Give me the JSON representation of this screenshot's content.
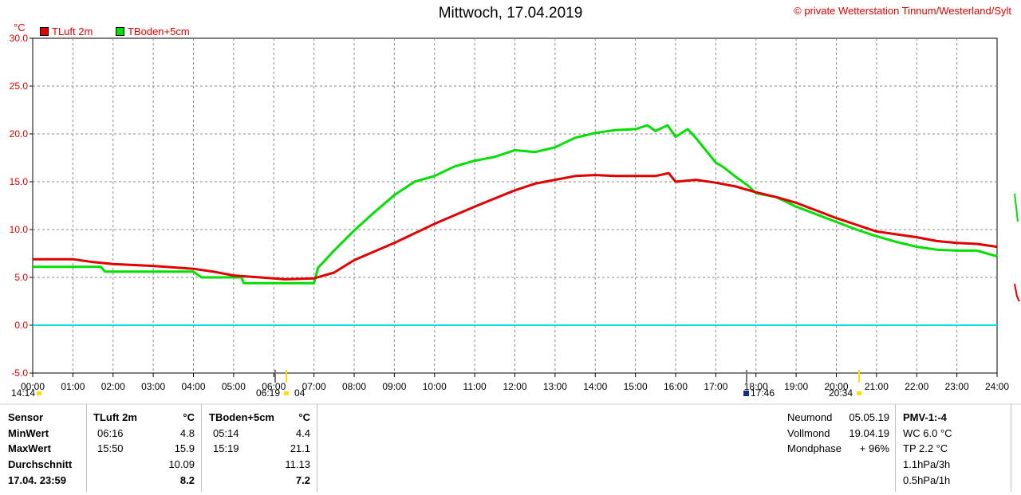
{
  "header": {
    "title": "Mittwoch, 17.04.2019",
    "copyright": "© private Wetterstation Tinnum/Westerland/Sylt",
    "unit": "°C"
  },
  "colors": {
    "tluft": "#e00000",
    "tboden": "#00e000",
    "zero": "#00e0e0",
    "grid": "#888888"
  },
  "chart_data": {
    "type": "line",
    "title": "Mittwoch, 17.04.2019",
    "ylabel": "°C",
    "ylim": [
      -5,
      30
    ],
    "xlim": [
      0,
      24
    ],
    "grid": true,
    "legend_position": "top-left",
    "y_ticks": [
      "30.0",
      "25.0",
      "20.0",
      "15.0",
      "10.0",
      "5.0",
      "0.0",
      "-5.0"
    ],
    "x_ticks": [
      "00:00",
      "01:00",
      "02:00",
      "03:00",
      "04:00",
      "05:00",
      "06:00",
      "07:00",
      "08:00",
      "09:00",
      "10:00",
      "11:00",
      "12:00",
      "13:00",
      "14:00",
      "15:00",
      "16:00",
      "17:00",
      "18:00",
      "19:00",
      "20:00",
      "21:00",
      "22:00",
      "23:00",
      "24:00"
    ],
    "series": [
      {
        "name": "TLuft 2m",
        "x": [
          0,
          1,
          1.5,
          2,
          3,
          4,
          4.5,
          5,
          6,
          6.27,
          7,
          7.5,
          8,
          9,
          10,
          11,
          12,
          12.5,
          13,
          13.5,
          14,
          14.5,
          15,
          15.5,
          15.83,
          16,
          16.5,
          17,
          17.5,
          18,
          18.5,
          19,
          19.5,
          20,
          20.5,
          21,
          21.5,
          22,
          22.5,
          23,
          23.5,
          24
        ],
        "y": [
          6.9,
          6.9,
          6.6,
          6.4,
          6.2,
          5.9,
          5.6,
          5.2,
          4.9,
          4.8,
          4.9,
          5.5,
          6.8,
          8.6,
          10.6,
          12.4,
          14.1,
          14.8,
          15.2,
          15.6,
          15.7,
          15.6,
          15.6,
          15.6,
          15.9,
          15.0,
          15.2,
          14.9,
          14.5,
          13.9,
          13.4,
          12.8,
          12.0,
          11.2,
          10.5,
          9.8,
          9.5,
          9.2,
          8.8,
          8.6,
          8.5,
          8.2
        ]
      },
      {
        "name": "TBoden+5cm",
        "x": [
          0,
          1.7,
          1.8,
          4,
          4.2,
          5.2,
          5.25,
          7.0,
          7.1,
          7.5,
          8,
          8.5,
          9,
          9.5,
          10,
          10.5,
          11,
          11.5,
          12,
          12.5,
          13,
          13.5,
          14,
          14.5,
          15,
          15.3,
          15.5,
          15.8,
          16,
          16.3,
          16.5,
          17,
          17.2,
          17.5,
          17.8,
          18,
          18.5,
          19,
          19.5,
          20,
          20.5,
          21,
          21.5,
          22,
          22.5,
          23,
          23.5,
          24
        ],
        "y": [
          6.1,
          6.1,
          5.6,
          5.6,
          5.0,
          5.0,
          4.4,
          4.4,
          6.0,
          7.8,
          9.9,
          11.8,
          13.6,
          15.0,
          15.6,
          16.6,
          17.2,
          17.6,
          18.3,
          18.1,
          18.6,
          19.6,
          20.1,
          20.4,
          20.5,
          20.9,
          20.3,
          20.9,
          19.7,
          20.5,
          19.6,
          17.0,
          16.5,
          15.5,
          14.6,
          13.8,
          13.4,
          12.4,
          11.6,
          10.8,
          10.0,
          9.3,
          8.7,
          8.2,
          7.9,
          7.8,
          7.8,
          7.2
        ]
      }
    ],
    "markers": [
      {
        "time": "14:14",
        "pos": "bottom"
      },
      {
        "time": "06:19",
        "pos": "bottom"
      },
      {
        "time": "04",
        "pos": "bottom"
      },
      {
        "time": "17:46",
        "pos": "bottom"
      },
      {
        "time": "20:34",
        "pos": "bottom"
      }
    ]
  },
  "legend": [
    {
      "label": "TLuft 2m",
      "color": "#e00000"
    },
    {
      "label": "TBoden+5cm",
      "color": "#00e000"
    }
  ],
  "stats": {
    "row_labels": [
      "Sensor",
      "MinWert",
      "MaxWert",
      "Durchschnitt",
      "17.04. 23:59"
    ],
    "tluft": {
      "header": "TLuft 2m",
      "unit": "°C",
      "min_time": "06:16",
      "min": "4.8",
      "max_time": "15:50",
      "max": "15.9",
      "avg": "10.09",
      "current": "8.2"
    },
    "tboden": {
      "header": "TBoden+5cm",
      "unit": "°C",
      "min_time": "05:14",
      "min": "4.4",
      "max_time": "15:19",
      "max": "21.1",
      "avg": "11.13",
      "current": "7.2"
    }
  },
  "moon": {
    "rows": [
      {
        "label": "Neumond",
        "value": "05.05.19"
      },
      {
        "label": "Vollmond",
        "value": "19.04.19"
      },
      {
        "label": "Mondphase",
        "value": "+ 96%"
      }
    ]
  },
  "pmv": {
    "title": "PMV-1:-4",
    "lines": [
      "WC 6.0 °C",
      "TP 2.2 °C",
      "1.1hPa/3h",
      "0.5hPa/1h"
    ]
  }
}
